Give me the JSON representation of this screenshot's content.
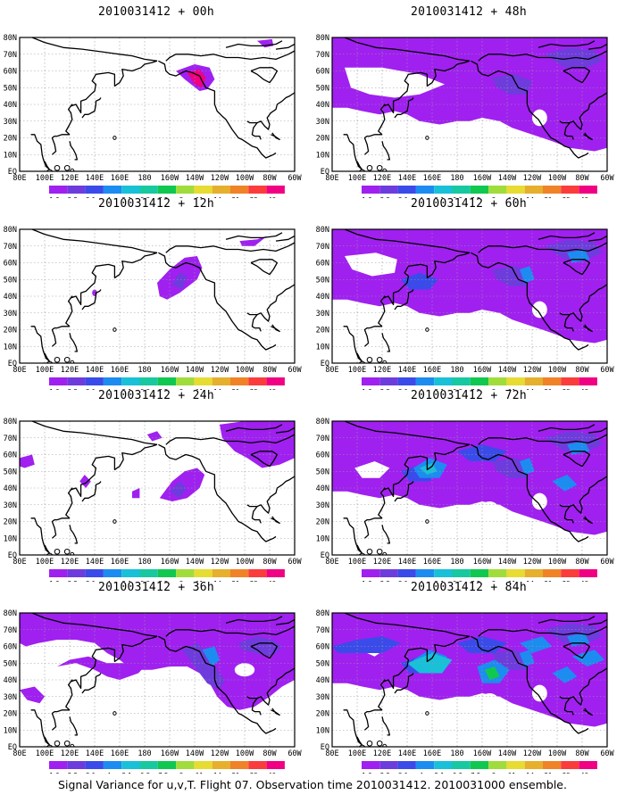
{
  "colorbar": {
    "labels": [
      "1.6",
      "2.2",
      "3.1",
      "4",
      "5.1",
      "6.3",
      "7.5",
      "9",
      "11",
      "14",
      "21",
      "29",
      "40"
    ],
    "colors": [
      "#a020f0",
      "#6e3cdc",
      "#3a4bea",
      "#1c8cf0",
      "#18c0d8",
      "#18c8a0",
      "#10c850",
      "#a0dc3c",
      "#e6dc32",
      "#e6af2d",
      "#f08228",
      "#fa3c3c",
      "#f00082"
    ]
  },
  "lat_labels": [
    "80N",
    "70N",
    "60N",
    "50N",
    "40N",
    "30N",
    "20N",
    "10N",
    "EQ"
  ],
  "lon_labels": [
    "80E",
    "100E",
    "120E",
    "140E",
    "160E",
    "180",
    "160W",
    "140W",
    "120W",
    "100W",
    "80W",
    "60W"
  ],
  "panels": [
    {
      "id": "p00",
      "title": "2010031412 + 00h",
      "level": 0
    },
    {
      "id": "p12",
      "title": "2010031412 + 12h",
      "level": 1
    },
    {
      "id": "p24",
      "title": "2010031412 + 24h",
      "level": 2
    },
    {
      "id": "p36",
      "title": "2010031412 + 36h",
      "level": 3
    },
    {
      "id": "p48",
      "title": "2010031412 + 48h",
      "level": 4
    },
    {
      "id": "p60",
      "title": "2010031412 + 60h",
      "level": 5
    },
    {
      "id": "p72",
      "title": "2010031412 + 72h",
      "level": 6
    },
    {
      "id": "p84",
      "title": "2010031412 + 84h",
      "level": 7
    }
  ],
  "footer": "Signal Variance for u,v,T. Flight 07. Observation time 2010031412. 2010031000 ensemble."
}
